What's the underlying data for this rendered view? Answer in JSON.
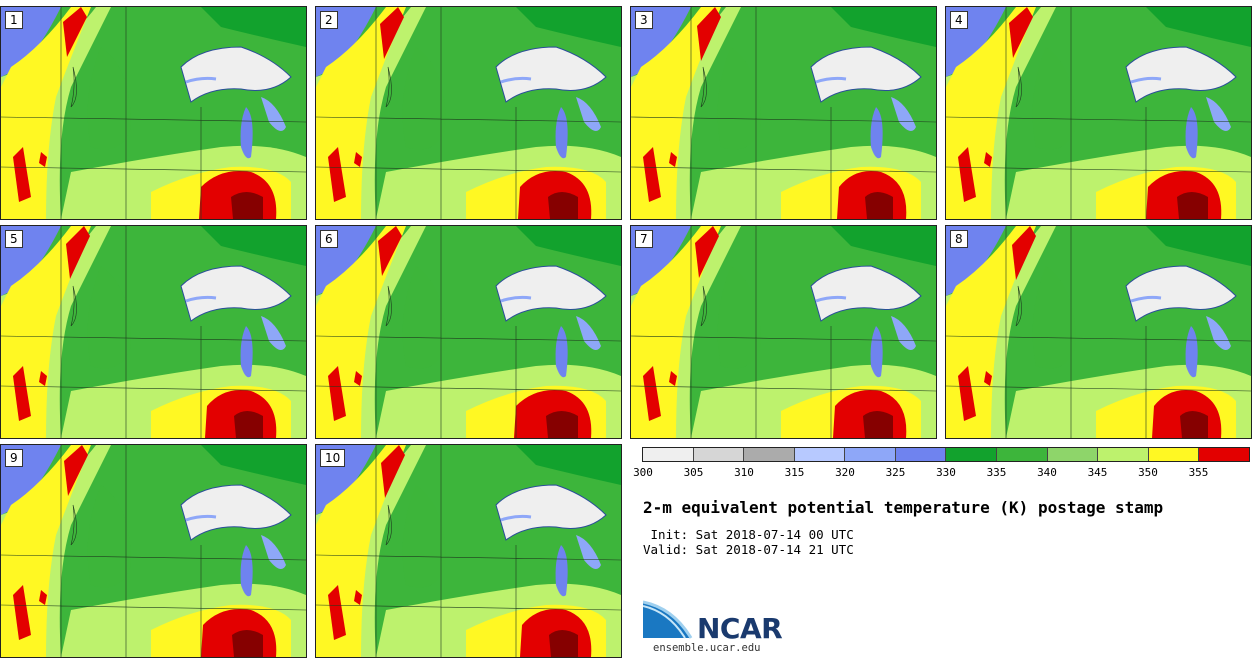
{
  "stamps": [
    {
      "label": "1"
    },
    {
      "label": "2"
    },
    {
      "label": "3"
    },
    {
      "label": "4"
    },
    {
      "label": "5"
    },
    {
      "label": "6"
    },
    {
      "label": "7"
    },
    {
      "label": "8"
    },
    {
      "label": "9"
    },
    {
      "label": "10"
    }
  ],
  "colorbar": {
    "ticks": [
      "300",
      "305",
      "310",
      "315",
      "320",
      "325",
      "330",
      "335",
      "340",
      "345",
      "350",
      "355"
    ],
    "colors": [
      "#efefef",
      "#d6d6d6",
      "#ababab",
      "#b7c9ff",
      "#8ea7f8",
      "#6f83ef",
      "#12a22d",
      "#3db53b",
      "#8ed56a",
      "#bdf26d",
      "#fff823",
      "#e30000",
      "#860000"
    ]
  },
  "title": "2-m equivalent potential temperature (K) postage stamp",
  "init_line": " Init: Sat 2018-07-14 00 UTC",
  "valid_line": "Valid: Sat 2018-07-14 21 UTC",
  "logo": {
    "text": "NCAR",
    "url": "ensemble.ucar.edu"
  }
}
